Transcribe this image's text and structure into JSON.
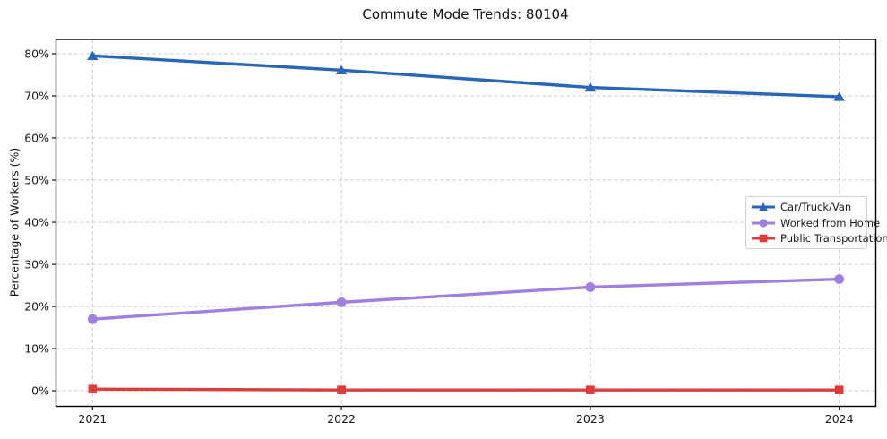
{
  "chart_data": {
    "type": "line",
    "title": "Commute Mode Trends: 80104",
    "xlabel": "",
    "ylabel": "Percentage of Workers (%)",
    "categories": [
      "2021",
      "2022",
      "2023",
      "2024"
    ],
    "series": [
      {
        "name": "Car/Truck/Van",
        "color": "#2a66b8",
        "marker": "triangle",
        "values": [
          79.5,
          76.1,
          72.0,
          69.8
        ]
      },
      {
        "name": "Worked from Home",
        "color": "#9f7fdf",
        "marker": "circle",
        "values": [
          17.0,
          21.0,
          24.6,
          26.5
        ]
      },
      {
        "name": "Public Transportation",
        "color": "#dd3c3c",
        "marker": "square",
        "values": [
          0.4,
          0.2,
          0.2,
          0.2
        ]
      }
    ],
    "yticks": [
      0,
      10,
      20,
      30,
      40,
      50,
      60,
      70,
      80
    ],
    "ytick_labels": [
      "0%",
      "10%",
      "20%",
      "30%",
      "40%",
      "50%",
      "60%",
      "70%",
      "80%"
    ],
    "ylim": [
      -3.7,
      83.4
    ],
    "grid": true,
    "grid_style": "dashed",
    "legend_position": "center-right"
  }
}
